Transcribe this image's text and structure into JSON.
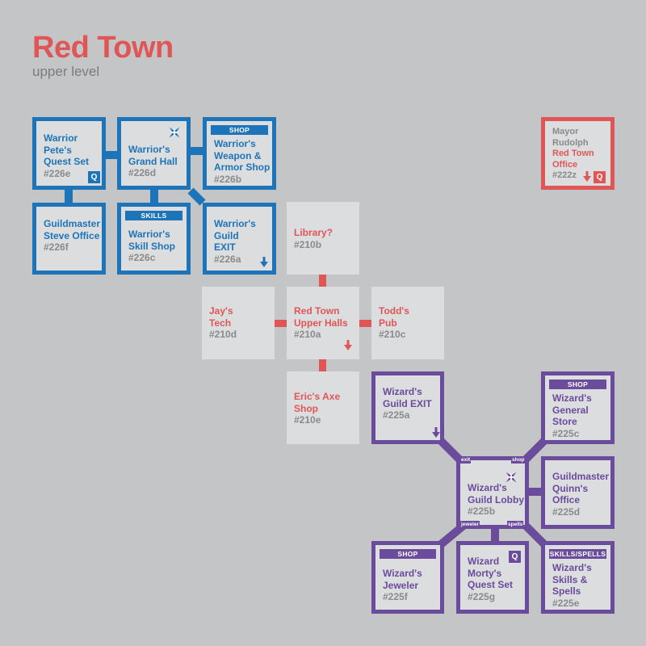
{
  "map": {
    "title": "Red Town",
    "subtitle": "upper level"
  },
  "colors": {
    "warrior": "#1e74b8",
    "wizard": "#6a4b9c",
    "town": "#e05656",
    "room_fill": "#dcdddf",
    "background": "#c4c5c7"
  },
  "rooms": {
    "warrior_pete": {
      "name": "Warrior Pete's Quest Set",
      "number": "#226e",
      "badge": "Q"
    },
    "warrior_grand_hall": {
      "name": "Warrior's Grand Hall",
      "number": "#226d",
      "icon": "compass-star-icon"
    },
    "warrior_weapon_shop": {
      "name": "Warrior's Weapon & Armor Shop",
      "number": "#226b",
      "tag": "SHOP"
    },
    "guildmaster_steve": {
      "name": "Guildmaster Steve Office",
      "number": "#226f"
    },
    "warrior_skill_shop": {
      "name": "Warrior's Skill Shop",
      "number": "#226c",
      "tag": "SKILLS"
    },
    "warrior_guild_exit": {
      "name": "Warrior's Guild EXIT",
      "number": "#226a",
      "icon": "down-arrow-icon"
    },
    "library": {
      "name": "Library?",
      "number": "#210b"
    },
    "jays_tech": {
      "name": "Jay's Tech",
      "number": "#210d"
    },
    "upper_halls": {
      "name": "Red Town Upper Halls",
      "number": "#210a",
      "icon": "down-arrow-icon"
    },
    "todds_pub": {
      "name": "Todd's Pub",
      "number": "#210c"
    },
    "erics_axe": {
      "name": "Eric's Axe Shop",
      "number": "#210e"
    },
    "mayor": {
      "name_prefix": "Mayor Rudolph",
      "name_highlight": "Red Town Office",
      "number": "#222z",
      "badge": "Q"
    },
    "wizard_guild_exit": {
      "name": "Wizard's Guild EXIT",
      "number": "#225a",
      "icon": "down-arrow-icon"
    },
    "wizard_general_store": {
      "name": "Wizard's General Store",
      "number": "#225c",
      "tag": "SHOP"
    },
    "wizard_lobby": {
      "name": "Wizard's Guild Lobby",
      "number": "#225b",
      "icon": "compass-star-icon"
    },
    "guildmaster_quinn": {
      "name": "Guildmaster Quinn's Office",
      "number": "#225d"
    },
    "wizard_jeweler": {
      "name": "Wizard's Jeweler",
      "number": "#225f",
      "tag": "SHOP"
    },
    "morty_quest": {
      "name": "Wizard Morty's Quest Set",
      "number": "#225g",
      "badge": "Q"
    },
    "wizard_skills": {
      "name": "Wizard's Skills & Spells",
      "number": "#225e",
      "tag": "SKILLS/SPELLS"
    }
  },
  "connector_labels": {
    "exit": "exit",
    "shop": "shop",
    "jeweler": "jeweler",
    "spells": "spells"
  }
}
